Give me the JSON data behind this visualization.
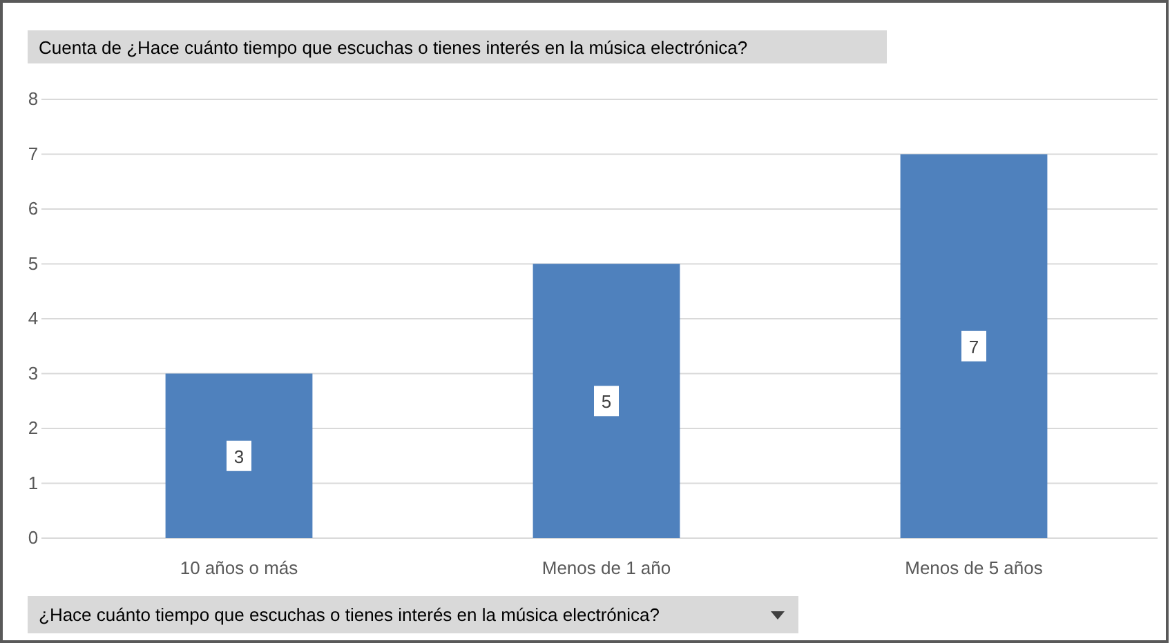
{
  "chart_data": {
    "type": "bar",
    "title": "Cuenta de ¿Hace cuánto tiempo que escuchas o tienes interés en la música electrónica?",
    "xlabel": "¿Hace cuánto tiempo que escuchas o tienes interés en la música electrónica?",
    "categories": [
      "10 años o más",
      "Menos de 1 año",
      "Menos de 5 años"
    ],
    "values": [
      3,
      5,
      7
    ],
    "color": "#4f81bd",
    "ylim": [
      0,
      8
    ],
    "yticks": [
      0,
      1,
      2,
      3,
      4,
      5,
      6,
      7,
      8
    ],
    "grid": true,
    "data_labels": true
  }
}
